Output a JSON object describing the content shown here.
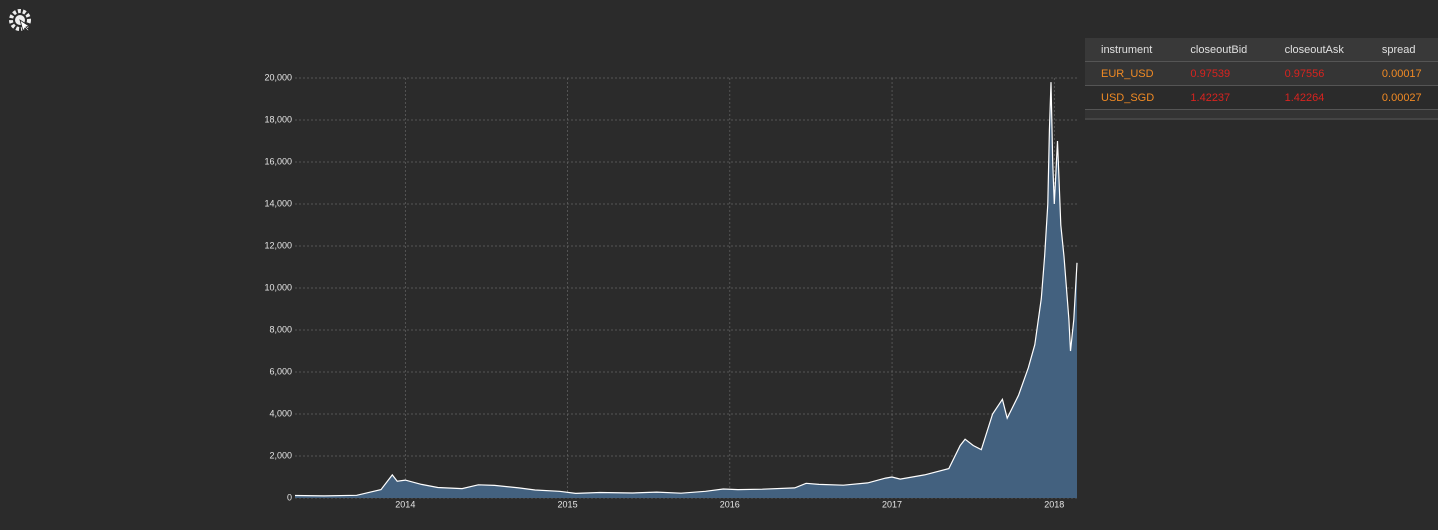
{
  "chart_data": {
    "type": "area",
    "x": [
      2013.32,
      2013.5,
      2013.7,
      2013.85,
      2013.92,
      2013.95,
      2014.0,
      2014.1,
      2014.2,
      2014.35,
      2014.45,
      2014.55,
      2014.7,
      2014.8,
      2014.95,
      2015.05,
      2015.2,
      2015.4,
      2015.55,
      2015.7,
      2015.85,
      2015.96,
      2016.05,
      2016.2,
      2016.4,
      2016.47,
      2016.55,
      2016.7,
      2016.85,
      2016.96,
      2017.0,
      2017.05,
      2017.2,
      2017.35,
      2017.42,
      2017.45,
      2017.5,
      2017.55,
      2017.62,
      2017.68,
      2017.71,
      2017.78,
      2017.84,
      2017.88,
      2017.92,
      2017.94,
      2017.96,
      2017.97,
      2017.98,
      2017.99,
      2018.0,
      2018.02,
      2018.04,
      2018.06,
      2018.09,
      2018.1,
      2018.12,
      2018.14
    ],
    "values": [
      120,
      100,
      130,
      400,
      1100,
      800,
      850,
      650,
      500,
      450,
      630,
      600,
      480,
      380,
      320,
      220,
      260,
      240,
      280,
      230,
      320,
      430,
      400,
      420,
      480,
      700,
      650,
      610,
      720,
      950,
      1000,
      900,
      1100,
      1400,
      2500,
      2800,
      2500,
      2300,
      4000,
      4700,
      3800,
      4900,
      6200,
      7300,
      9500,
      11500,
      14000,
      17500,
      19800,
      16000,
      14000,
      17000,
      13000,
      11500,
      8500,
      7000,
      8500,
      11200
    ],
    "color": "#43617f",
    "line_color": "#ffffff",
    "grid": true,
    "xlim": [
      2013.32,
      2018.14
    ],
    "xticks": [
      2014,
      2015,
      2016,
      2017,
      2018
    ],
    "ylim": [
      0,
      20000
    ],
    "yticks": [
      0,
      {
        "value": 2000,
        "label": "2,000"
      },
      {
        "value": 4000,
        "label": "4,000"
      },
      {
        "value": 6000,
        "label": "6,000"
      },
      {
        "value": 8000,
        "label": "8,000"
      },
      {
        "value": 10000,
        "label": "10,000"
      },
      {
        "value": 12000,
        "label": "12,000"
      },
      {
        "value": 14000,
        "label": "14,000"
      },
      {
        "value": 16000,
        "label": "16,000"
      },
      {
        "value": 18000,
        "label": "18,000"
      },
      {
        "value": 20000,
        "label": "20,000"
      }
    ]
  },
  "table": {
    "headers": [
      "instrument",
      "closeoutBid",
      "closeoutAsk",
      "spread"
    ],
    "rows": [
      [
        "EUR_USD",
        "0.97539",
        "0.97556",
        "0.00017"
      ],
      [
        "USD_SGD",
        "1.42237",
        "1.42264",
        "0.00027"
      ]
    ]
  }
}
